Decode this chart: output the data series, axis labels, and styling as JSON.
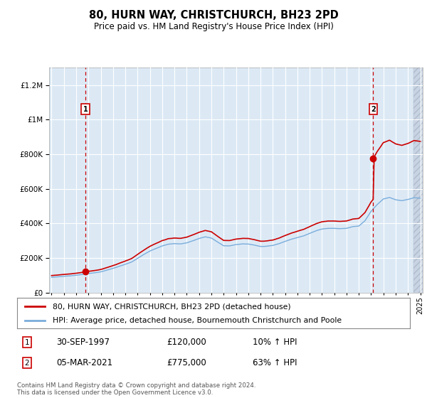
{
  "title": "80, HURN WAY, CHRISTCHURCH, BH23 2PD",
  "subtitle": "Price paid vs. HM Land Registry's House Price Index (HPI)",
  "legend_line1": "80, HURN WAY, CHRISTCHURCH, BH23 2PD (detached house)",
  "legend_line2": "HPI: Average price, detached house, Bournemouth Christchurch and Poole",
  "annotation1_date": "30-SEP-1997",
  "annotation1_price": "£120,000",
  "annotation1_hpi": "10% ↑ HPI",
  "annotation2_date": "05-MAR-2021",
  "annotation2_price": "£775,000",
  "annotation2_hpi": "63% ↑ HPI",
  "footnote": "Contains HM Land Registry data © Crown copyright and database right 2024.\nThis data is licensed under the Open Government Licence v3.0.",
  "red_line_color": "#cc0000",
  "blue_line_color": "#7aaddc",
  "background_color": "#dce9f5",
  "grid_color": "#ffffff",
  "ylim": [
    0,
    1300000
  ],
  "yticks": [
    0,
    200000,
    400000,
    600000,
    800000,
    1000000,
    1200000
  ],
  "sale1_x": 1997.75,
  "sale1_y": 120000,
  "sale2_x": 2021.17,
  "sale2_y": 775000,
  "xmin": 1994.8,
  "xmax": 2025.2,
  "hatch_start": 2024.42
}
